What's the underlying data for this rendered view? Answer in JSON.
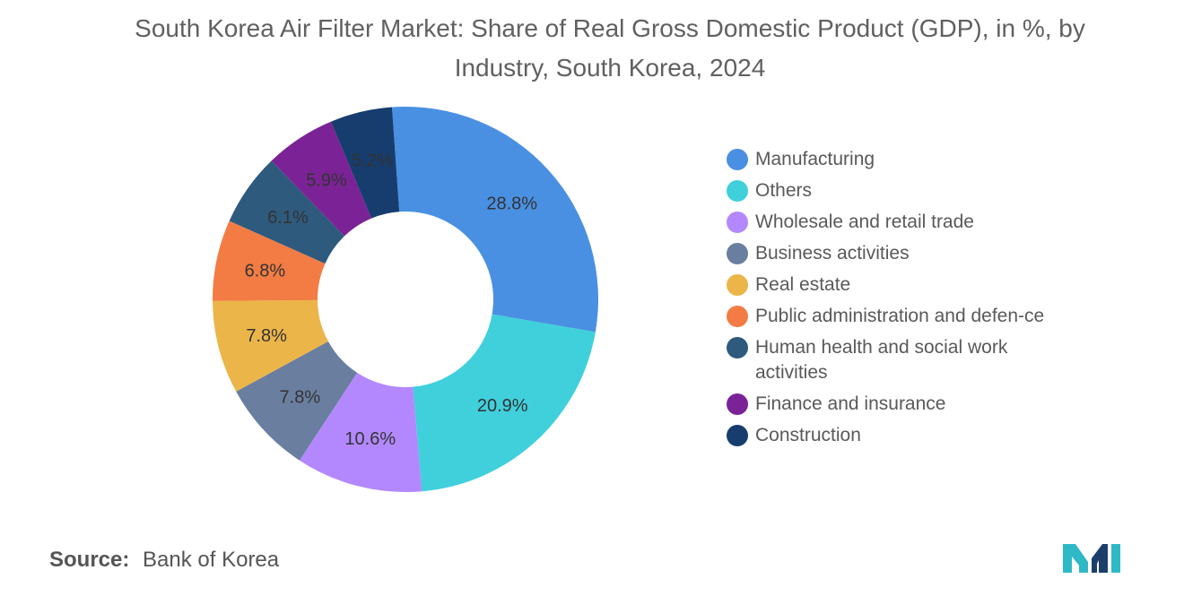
{
  "chart_data": {
    "type": "pie",
    "title": "South Korea Air Filter Market: Share of Real Gross Domestic Product (GDP), in %, by Industry, South Korea, 2024",
    "categories": [
      "Manufacturing",
      "Others",
      "Wholesale and retail trade",
      "Business activities",
      "Real estate",
      "Public administration and defence",
      "Human health and social work activities",
      "Finance and insurance",
      "Construction"
    ],
    "values": [
      28.8,
      20.9,
      10.6,
      7.8,
      7.8,
      6.8,
      6.1,
      5.9,
      5.2
    ],
    "labels": [
      "28.8%",
      "20.9%",
      "10.6%",
      "7.8%",
      "7.8%",
      "6.8%",
      "6.1%",
      "5.9%",
      "5.2%"
    ],
    "colors": [
      "#4a90e2",
      "#3fd0dc",
      "#b388ff",
      "#6a7ea0",
      "#ebb54a",
      "#f27c44",
      "#2e5a7e",
      "#7b2396",
      "#163d6e"
    ],
    "legend_labels": [
      "Manufacturing",
      "Others",
      "Wholesale and retail trade",
      "Business activities",
      "Real estate",
      "Public administration and defen-ce",
      "Human health and social work activities",
      "Finance and insurance",
      "Construction"
    ],
    "donut": true,
    "legend_position": "right"
  },
  "source": {
    "label": "Source:",
    "text": "Bank of Korea"
  },
  "logo": {
    "icon": "mordor-intelligence-logo-icon",
    "colors": [
      "#1b3f6b",
      "#2fb9c6"
    ]
  }
}
